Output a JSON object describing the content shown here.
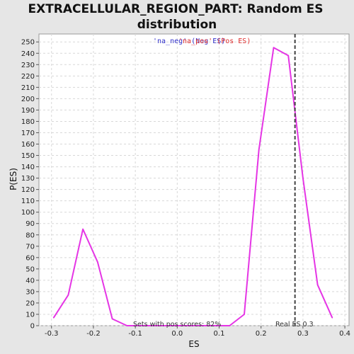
{
  "colors": {
    "background": "#e6e6e6",
    "plot_background": "#ffffff",
    "grid": "#d8d8d8",
    "series": "#e535e5",
    "neg_legend": "#3333cc",
    "pos_legend": "#e03030",
    "real_es_line": "#444444"
  },
  "chart_data": {
    "type": "line",
    "title_line1": "EXTRACELLULAR_REGION_PART: Random ES",
    "title_line2": "distribution",
    "xlabel": "ES",
    "ylabel": "P(ES)",
    "xlim": [
      -0.33,
      0.41
    ],
    "ylim": [
      0,
      257
    ],
    "x_ticks": [
      -0.3,
      -0.2,
      -0.1,
      0.0,
      0.1,
      0.2,
      0.3,
      0.4
    ],
    "x_tick_labels": [
      "-0.3",
      "-0.2",
      "-0.1",
      "0.0",
      "0.1",
      "0.2",
      "0.3",
      "0.4"
    ],
    "y_ticks": [
      0,
      10,
      20,
      30,
      40,
      50,
      60,
      70,
      80,
      90,
      100,
      110,
      120,
      130,
      140,
      150,
      160,
      170,
      180,
      190,
      200,
      210,
      220,
      230,
      240,
      250
    ],
    "grid": true,
    "series": [
      {
        "x": [
          -0.295,
          -0.26,
          -0.225,
          -0.19,
          -0.155,
          -0.12,
          -0.085,
          -0.05,
          -0.015,
          0.02,
          0.055,
          0.09,
          0.125,
          0.16,
          0.195,
          0.23,
          0.265,
          0.3,
          0.335,
          0.37
        ],
        "y": [
          7,
          27,
          85,
          56,
          6,
          0,
          0,
          0,
          0,
          0,
          0,
          0,
          0,
          10,
          155,
          245,
          238,
          130,
          36,
          7
        ]
      }
    ],
    "real_es": 0.281,
    "legend": {
      "neg": "'na_neg' (Neg ES)",
      "pos": "'na_pos' (Pos ES)"
    },
    "annotations": {
      "sets_with_pos": "Sets with pos scores: 82%",
      "real_es_label": "Real ES 0.3"
    }
  }
}
